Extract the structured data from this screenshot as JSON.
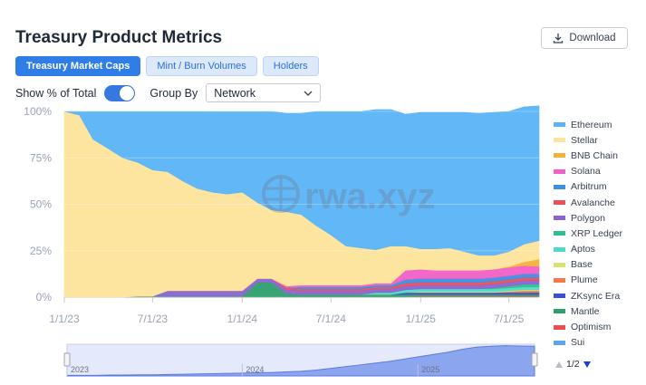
{
  "header": {
    "title": "Treasury Product Metrics",
    "download_label": "Download"
  },
  "tabs": [
    {
      "label": "Treasury Market Caps",
      "active": true
    },
    {
      "label": "Mint / Burn Volumes",
      "active": false
    },
    {
      "label": "Holders",
      "active": false
    }
  ],
  "controls": {
    "show_pct_label": "Show % of Total",
    "show_pct_on": true,
    "group_by_label": "Group By",
    "group_by_value": "Network"
  },
  "watermark": "rwa.xyz",
  "pager": {
    "label": "1/2"
  },
  "colors": {
    "accent": "#2f7ee8",
    "ethereum": "#5ab4f5",
    "stellar": "#fde49a"
  },
  "chart_data": {
    "type": "area",
    "stacked": true,
    "y_format": "percent",
    "ylim": [
      0,
      100
    ],
    "yticks": [
      "0%",
      "25%",
      "50%",
      "75%",
      "100%"
    ],
    "xticks": [
      "1/1/23",
      "7/1/23",
      "1/1/24",
      "7/1/24",
      "1/1/25",
      "7/1/25"
    ],
    "x": [
      "2023-01-01",
      "2023-02-01",
      "2023-03-01",
      "2023-04-01",
      "2023-05-01",
      "2023-06-01",
      "2023-07-01",
      "2023-08-01",
      "2023-09-01",
      "2023-10-01",
      "2023-11-01",
      "2023-12-01",
      "2024-01-01",
      "2024-02-01",
      "2024-03-01",
      "2024-04-01",
      "2024-05-01",
      "2024-06-01",
      "2024-07-01",
      "2024-08-01",
      "2024-09-01",
      "2024-10-01",
      "2024-11-01",
      "2024-12-01",
      "2025-01-01",
      "2025-02-01",
      "2025-03-01",
      "2025-04-01",
      "2025-05-01",
      "2025-06-01",
      "2025-07-01",
      "2025-08-01",
      "2025-09-01"
    ],
    "series": [
      {
        "name": "Sui",
        "color": "#5aa6e8",
        "values": [
          0,
          0,
          0,
          0,
          0,
          0,
          0,
          0,
          0,
          0,
          0,
          0,
          0,
          0,
          0,
          0,
          0,
          0,
          0,
          0,
          0,
          0,
          0,
          0,
          0,
          0,
          0,
          0,
          0,
          0,
          0,
          0,
          0
        ]
      },
      {
        "name": "Optimism",
        "color": "#ef4b4b",
        "values": [
          0,
          0,
          0,
          0,
          0,
          0,
          0,
          0,
          0,
          0,
          0,
          0,
          0,
          0,
          0,
          0,
          0,
          0,
          0,
          0,
          0,
          0,
          0,
          0,
          0.5,
          0.5,
          0.5,
          0.5,
          0.5,
          0.5,
          0.5,
          0.5,
          0.5
        ]
      },
      {
        "name": "Mantle",
        "color": "#2e9e6b",
        "values": [
          0,
          0,
          0,
          0,
          0,
          0.5,
          0.5,
          0.5,
          0.5,
          0.5,
          0.5,
          0.5,
          0.5,
          8,
          8,
          2,
          1.5,
          1.5,
          1.5,
          1.5,
          1.5,
          1.5,
          1.5,
          1.5,
          1,
          1,
          1,
          1,
          1,
          1,
          1,
          1,
          1
        ]
      },
      {
        "name": "ZKsync Era",
        "color": "#3b4fd1",
        "values": [
          0,
          0,
          0,
          0,
          0,
          0,
          0,
          0,
          0,
          0,
          0,
          0,
          0,
          0,
          0,
          0,
          0,
          0,
          0,
          0,
          0,
          0,
          0,
          1,
          1,
          1,
          1,
          1,
          1,
          1,
          1,
          1,
          1
        ]
      },
      {
        "name": "Plume",
        "color": "#f47a4a",
        "values": [
          0,
          0,
          0,
          0,
          0,
          0,
          0,
          0,
          0,
          0,
          0,
          0,
          0,
          0,
          0,
          0,
          0,
          0,
          0,
          0,
          0,
          0,
          0,
          0,
          0,
          0,
          0,
          0,
          0,
          0,
          0.5,
          1,
          1
        ]
      },
      {
        "name": "Base",
        "color": "#d7e36a",
        "values": [
          0,
          0,
          0,
          0,
          0,
          0,
          0,
          0,
          0,
          0,
          0,
          0,
          0,
          0,
          0,
          0,
          0,
          0,
          0,
          0,
          0,
          0,
          0,
          0,
          0.5,
          0.5,
          0.5,
          0.5,
          0.5,
          0.5,
          0.5,
          0.5,
          0.5
        ]
      },
      {
        "name": "Aptos",
        "color": "#4fd9c6",
        "values": [
          0,
          0,
          0,
          0,
          0,
          0,
          0,
          0,
          0,
          0,
          0,
          0,
          0,
          0,
          0,
          0,
          0,
          0,
          0,
          0,
          0,
          1,
          1,
          1.5,
          1.5,
          1.5,
          1.5,
          1.5,
          1.5,
          1.5,
          1.5,
          1.5,
          1.5
        ]
      },
      {
        "name": "XRP Ledger",
        "color": "#2fbf8f",
        "values": [
          0,
          0,
          0,
          0,
          0,
          0,
          0,
          0,
          0,
          0,
          0,
          0,
          0,
          0,
          0,
          0,
          0,
          0,
          0,
          0,
          0,
          0,
          0,
          0,
          0,
          0,
          0,
          0,
          0,
          0.5,
          1,
          1.5,
          1.5
        ]
      },
      {
        "name": "Polygon",
        "color": "#8a63d2",
        "values": [
          0,
          0,
          0,
          0,
          0,
          0,
          0,
          3,
          3,
          3,
          3,
          3,
          3,
          2,
          2,
          2,
          2,
          2,
          2,
          2,
          2,
          2,
          2,
          2,
          2,
          2,
          2,
          2,
          2,
          2,
          2,
          2,
          2
        ]
      },
      {
        "name": "Avalanche",
        "color": "#e8505b",
        "values": [
          0,
          0,
          0,
          0,
          0,
          0,
          0,
          0,
          0,
          0,
          0,
          0,
          0,
          0,
          0,
          1,
          1,
          1,
          1,
          1,
          1,
          1,
          1,
          1.5,
          1.5,
          1.5,
          1.5,
          1.5,
          1.5,
          1.5,
          1.5,
          1.5,
          1.5
        ]
      },
      {
        "name": "Arbitrum",
        "color": "#3d8fe0",
        "values": [
          0,
          0,
          0,
          0,
          0,
          0,
          0,
          0,
          0,
          0,
          0,
          0,
          0,
          0,
          0,
          0,
          1,
          1,
          1,
          1,
          1,
          1,
          1,
          2,
          2,
          2,
          2,
          2,
          2,
          2,
          2,
          2,
          2
        ]
      },
      {
        "name": "Solana",
        "color": "#f25fc7",
        "values": [
          0,
          0,
          0,
          0,
          0,
          0,
          0,
          0,
          0,
          0,
          0,
          0,
          0,
          0,
          0,
          1,
          1,
          1,
          1,
          1,
          1,
          1,
          1,
          5,
          5,
          4.5,
          4.5,
          4.5,
          4.5,
          4.5,
          4.5,
          4.5,
          4
        ]
      },
      {
        "name": "BNB Chain",
        "color": "#f4b03a",
        "values": [
          0,
          0,
          0,
          0,
          0,
          0,
          0,
          0,
          0,
          0,
          0,
          0,
          0,
          0,
          0,
          0,
          0,
          0,
          0,
          0,
          0,
          0,
          0,
          0,
          0,
          0,
          0,
          0,
          0,
          0,
          0.5,
          2,
          4
        ]
      },
      {
        "name": "Stellar",
        "color": "#fde49a",
        "values": [
          100,
          98,
          85,
          80,
          75,
          72,
          68,
          64,
          59,
          55,
          53,
          52,
          53,
          41,
          37,
          40,
          38,
          32,
          27,
          21,
          20,
          18,
          20,
          13,
          11,
          11.5,
          12,
          10,
          8,
          7.5,
          8,
          9.5,
          10
        ]
      },
      {
        "name": "Ethereum",
        "color": "#5ab4f5",
        "values": [
          0,
          2,
          15,
          20,
          25,
          27.5,
          31.5,
          32.5,
          37.5,
          41.5,
          43.5,
          44.5,
          43.5,
          49,
          53,
          53,
          54.5,
          61.5,
          66.5,
          72.5,
          73.5,
          75.5,
          73.5,
          71,
          73.5,
          73.5,
          73,
          75,
          76.5,
          77,
          75.5,
          74,
          72.5
        ]
      }
    ],
    "legend": {
      "position": "right",
      "entries": [
        "Ethereum",
        "Stellar",
        "BNB Chain",
        "Solana",
        "Arbitrum",
        "Avalanche",
        "Polygon",
        "XRP Ledger",
        "Aptos",
        "Base",
        "Plume",
        "ZKsync Era",
        "Mantle",
        "Optimism",
        "Sui"
      ]
    },
    "navigator": {
      "labels": [
        "2023",
        "2024",
        "2025"
      ],
      "overview_values": [
        2,
        2,
        2,
        3,
        3,
        4,
        4,
        5,
        6,
        7,
        8,
        9,
        10,
        11,
        12,
        14,
        16,
        20,
        26,
        32,
        38,
        44,
        50,
        58,
        66,
        74,
        82,
        92,
        100,
        103,
        105,
        104,
        103
      ]
    }
  }
}
